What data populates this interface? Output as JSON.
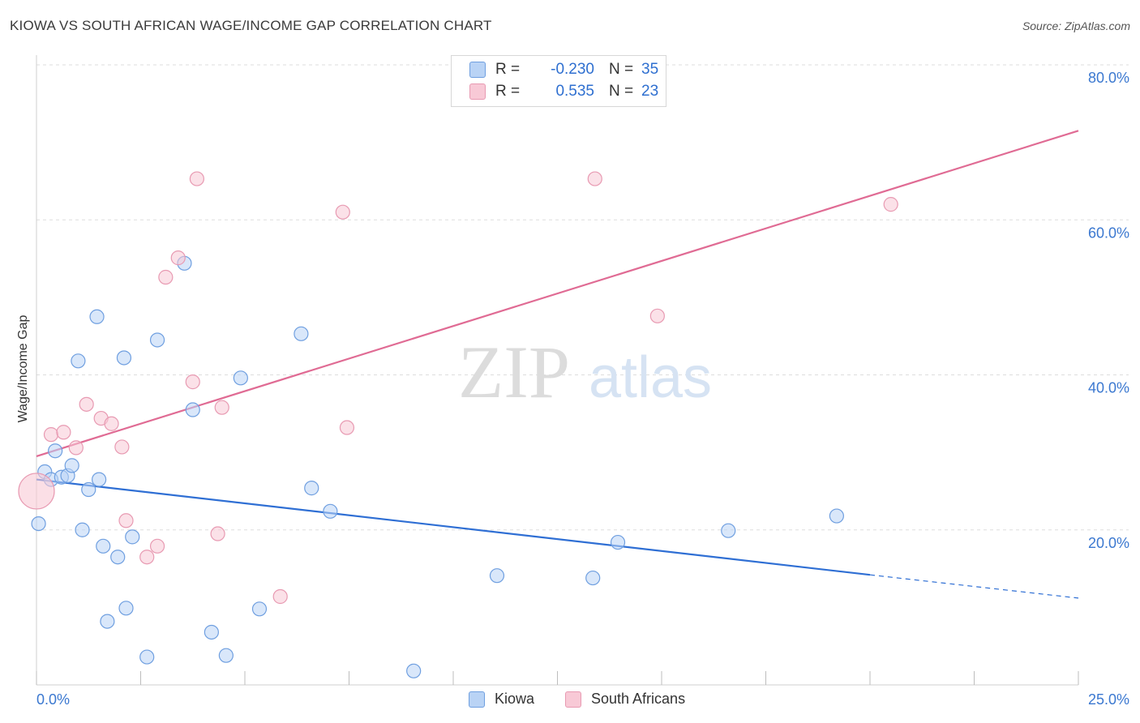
{
  "header": {
    "title": "KIOWA VS SOUTH AFRICAN WAGE/INCOME GAP CORRELATION CHART",
    "source": "Source: ZipAtlas.com"
  },
  "watermark": {
    "part1": "ZIP",
    "part2": "atlas"
  },
  "legend_top": {
    "rows": [
      {
        "r_label": "R =",
        "r_value": "-0.230",
        "n_label": "N =",
        "n_value": "35"
      },
      {
        "r_label": "R =",
        "r_value": "0.535",
        "n_label": "N =",
        "n_value": "23"
      }
    ]
  },
  "colors": {
    "kiowa_fill": "#b9d3f5",
    "kiowa_stroke": "#6f9fe0",
    "kiowa_line": "#2f6fd4",
    "sa_fill": "#f8c9d6",
    "sa_stroke": "#e89ab2",
    "sa_line": "#e06b94",
    "axis_label": "#3b78d0",
    "grid": "#dedede"
  },
  "chart_data": {
    "type": "scatter",
    "title": "KIOWA VS SOUTH AFRICAN WAGE/INCOME GAP CORRELATION CHART",
    "xlabel": "",
    "ylabel": "Wage/Income Gap",
    "xlim": [
      0,
      25
    ],
    "ylim": [
      0,
      80
    ],
    "x_tick_labels": [
      "0.0%",
      "25.0%"
    ],
    "y_ticks": [
      20,
      40,
      60,
      80
    ],
    "y_tick_labels": [
      "20.0%",
      "40.0%",
      "60.0%",
      "80.0%"
    ],
    "grid": true,
    "legend": "bottom",
    "series": [
      {
        "name": "Kiowa",
        "color": "#6f9fe0",
        "r": -0.23,
        "n": 35,
        "trend": {
          "x0": 0,
          "y0": 26.5,
          "x1": 20,
          "y1": 14.2,
          "dash_to_x": 25,
          "dash_to_y": 11.2
        },
        "points": [
          [
            0.05,
            20.8
          ],
          [
            0.2,
            27.5
          ],
          [
            0.35,
            26.5
          ],
          [
            0.45,
            30.2
          ],
          [
            0.6,
            26.8
          ],
          [
            0.75,
            27.0
          ],
          [
            0.85,
            28.3
          ],
          [
            1.0,
            41.8
          ],
          [
            1.1,
            20.0
          ],
          [
            1.25,
            25.2
          ],
          [
            1.45,
            47.5
          ],
          [
            1.5,
            26.5
          ],
          [
            1.6,
            17.9
          ],
          [
            1.7,
            8.2
          ],
          [
            1.95,
            16.5
          ],
          [
            2.1,
            42.2
          ],
          [
            2.15,
            9.9
          ],
          [
            2.3,
            19.1
          ],
          [
            2.65,
            3.6
          ],
          [
            2.9,
            44.5
          ],
          [
            3.55,
            54.4
          ],
          [
            3.75,
            35.5
          ],
          [
            4.2,
            6.8
          ],
          [
            4.55,
            3.8
          ],
          [
            4.9,
            39.6
          ],
          [
            5.35,
            9.8
          ],
          [
            6.35,
            45.3
          ],
          [
            6.6,
            25.4
          ],
          [
            7.05,
            22.4
          ],
          [
            9.05,
            1.8
          ],
          [
            11.05,
            14.1
          ],
          [
            13.35,
            13.8
          ],
          [
            13.95,
            18.4
          ],
          [
            16.6,
            19.9
          ],
          [
            19.2,
            21.8
          ]
        ]
      },
      {
        "name": "South Africans",
        "color": "#e89ab2",
        "r": 0.535,
        "n": 23,
        "trend": {
          "x0": 0,
          "y0": 29.5,
          "x1": 25,
          "y1": 71.5
        },
        "points": [
          [
            0.0,
            25.0
          ],
          [
            0.35,
            32.3
          ],
          [
            0.65,
            32.6
          ],
          [
            0.95,
            30.6
          ],
          [
            1.2,
            36.2
          ],
          [
            1.55,
            34.4
          ],
          [
            1.8,
            33.7
          ],
          [
            2.05,
            30.7
          ],
          [
            2.15,
            21.2
          ],
          [
            2.65,
            16.5
          ],
          [
            2.9,
            17.9
          ],
          [
            3.1,
            52.6
          ],
          [
            3.4,
            55.1
          ],
          [
            3.75,
            39.1
          ],
          [
            3.85,
            65.3
          ],
          [
            4.35,
            19.5
          ],
          [
            4.45,
            35.8
          ],
          [
            5.85,
            11.4
          ],
          [
            7.35,
            61.0
          ],
          [
            7.45,
            33.2
          ],
          [
            13.4,
            65.3
          ],
          [
            14.9,
            47.6
          ],
          [
            20.5,
            62.0
          ]
        ]
      }
    ]
  }
}
